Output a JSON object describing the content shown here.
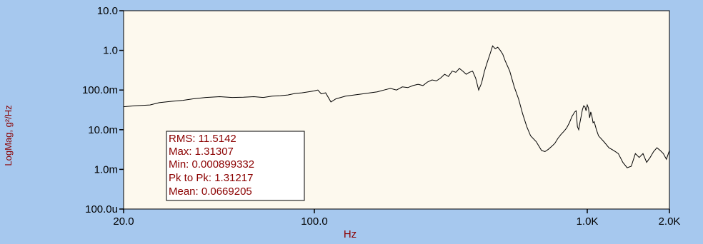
{
  "chart_data": {
    "type": "line",
    "xlabel": "Hz",
    "ylabel": "LogMag, g²/Hz",
    "x_scale": "log",
    "y_scale": "log",
    "xlim": [
      20,
      2000
    ],
    "ylim": [
      0.0001,
      10
    ],
    "x_ticks": [
      {
        "value": 20,
        "label": "20.0"
      },
      {
        "value": 100,
        "label": "100.0"
      },
      {
        "value": 1000,
        "label": "1.0K"
      },
      {
        "value": 2000,
        "label": "2.0K"
      }
    ],
    "y_ticks": [
      {
        "value": 0.0001,
        "label": "100.0u"
      },
      {
        "value": 0.001,
        "label": "1.0m"
      },
      {
        "value": 0.01,
        "label": "10.0m"
      },
      {
        "value": 0.1,
        "label": "100.0m"
      },
      {
        "value": 1,
        "label": "1.0"
      },
      {
        "value": 10,
        "label": "10.0"
      }
    ],
    "grid": false,
    "legend": "none",
    "colors": {
      "page_bg": "#a6c8ee",
      "plot_bg": "#fdf9ee",
      "line": "#000000",
      "label_text": "#8b0000"
    },
    "series": [
      {
        "x": [
          20,
          22,
          25,
          27,
          30,
          33,
          36,
          40,
          45,
          50,
          55,
          60,
          65,
          70,
          75,
          80,
          85,
          90,
          95,
          100,
          103,
          106,
          110,
          115,
          120,
          125,
          130,
          140,
          150,
          160,
          170,
          180,
          190,
          200,
          210,
          220,
          230,
          240,
          250,
          260,
          270,
          280,
          290,
          300,
          310,
          320,
          330,
          340,
          350,
          360,
          370,
          380,
          390,
          400,
          410,
          420,
          430,
          440,
          450,
          460,
          470,
          480,
          490,
          500,
          520,
          540,
          560,
          580,
          600,
          620,
          650,
          680,
          700,
          720,
          740,
          760,
          780,
          800,
          820,
          840,
          860,
          880,
          900,
          910,
          920,
          930,
          940,
          950,
          960,
          970,
          980,
          990,
          1000,
          1010,
          1020,
          1030,
          1040,
          1050,
          1060,
          1080,
          1100,
          1150,
          1200,
          1250,
          1300,
          1350,
          1400,
          1450,
          1500,
          1550,
          1600,
          1650,
          1700,
          1750,
          1800,
          1850,
          1900,
          1950,
          2000
        ],
        "y": [
          0.038,
          0.04,
          0.042,
          0.048,
          0.052,
          0.055,
          0.06,
          0.065,
          0.068,
          0.065,
          0.066,
          0.068,
          0.065,
          0.07,
          0.072,
          0.075,
          0.082,
          0.085,
          0.09,
          0.095,
          0.1,
          0.08,
          0.085,
          0.05,
          0.06,
          0.065,
          0.07,
          0.075,
          0.08,
          0.085,
          0.09,
          0.1,
          0.11,
          0.1,
          0.12,
          0.115,
          0.13,
          0.14,
          0.13,
          0.16,
          0.18,
          0.17,
          0.2,
          0.25,
          0.22,
          0.3,
          0.28,
          0.35,
          0.3,
          0.25,
          0.28,
          0.3,
          0.2,
          0.1,
          0.15,
          0.3,
          0.5,
          0.8,
          1.3,
          1.1,
          1.2,
          1.0,
          0.8,
          0.55,
          0.3,
          0.12,
          0.06,
          0.025,
          0.012,
          0.007,
          0.005,
          0.003,
          0.0028,
          0.0032,
          0.0038,
          0.0045,
          0.006,
          0.0075,
          0.009,
          0.011,
          0.015,
          0.022,
          0.028,
          0.03,
          0.012,
          0.01,
          0.015,
          0.022,
          0.032,
          0.04,
          0.038,
          0.03,
          0.042,
          0.035,
          0.02,
          0.028,
          0.022,
          0.015,
          0.016,
          0.01,
          0.007,
          0.005,
          0.0035,
          0.003,
          0.0025,
          0.0015,
          0.0011,
          0.0012,
          0.0025,
          0.002,
          0.0025,
          0.0015,
          0.002,
          0.0028,
          0.0035,
          0.003,
          0.0025,
          0.0018,
          0.003
        ]
      }
    ],
    "stats_box": [
      {
        "label": "RMS: 11.5142"
      },
      {
        "label": "Max: 1.31307"
      },
      {
        "label": "Min: 0.000899332"
      },
      {
        "label": "Pk to Pk: 1.31217"
      },
      {
        "label": "Mean: 0.0669205"
      }
    ]
  }
}
